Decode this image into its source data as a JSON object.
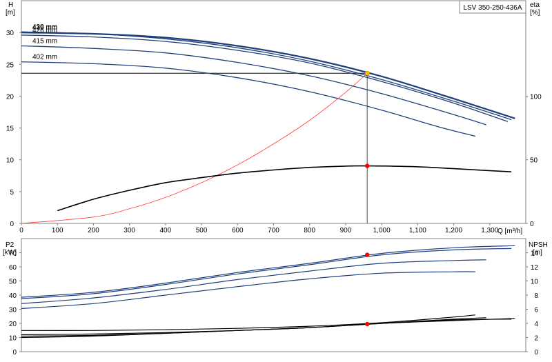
{
  "chart_data": [
    {
      "type": "line",
      "title": "LSV 350-250-436A",
      "xlabel": "Q [m³/h]",
      "ylabel_left": [
        "H",
        "[m]"
      ],
      "ylabel_right": [
        "eta",
        "[%]"
      ],
      "xlim": [
        0,
        1400
      ],
      "ylim": [
        0,
        35
      ],
      "ylim_right": [
        0,
        175
      ],
      "x_ticks": [
        0,
        100,
        200,
        300,
        400,
        500,
        600,
        700,
        800,
        900,
        1000,
        1100,
        1200,
        1300
      ],
      "x_tick_labels": [
        "0",
        "100",
        "200",
        "300",
        "400",
        "500",
        "600",
        "700",
        "800",
        "900",
        "1,000",
        "1,100",
        "1,200",
        "1,300"
      ],
      "y_ticks": [
        0,
        5,
        10,
        15,
        20,
        25,
        30
      ],
      "y_tick_labels": [
        "0",
        "5",
        "10",
        "15",
        "20",
        "25",
        "30"
      ],
      "y_right_ticks": [
        0,
        50,
        100
      ],
      "y_right_tick_labels": [
        "0",
        "50",
        "100"
      ],
      "grid": false,
      "colors": {
        "curve": "#1f3f7a",
        "curve_fine": "#3a5f9a",
        "system_curve": "#ff3b3b",
        "efficiency": "#000000",
        "point_red": "#ff0000",
        "point_yellow": "#ffc000",
        "guide": "#888888"
      },
      "series": [
        {
          "name": "430 mm",
          "role": "head",
          "x": [
            0,
            200,
            400,
            600,
            800,
            1000,
            1200,
            1360
          ],
          "y": [
            30.1,
            29.8,
            29.0,
            27.6,
            25.5,
            22.6,
            19.2,
            16.3
          ]
        },
        {
          "name": "436 mm",
          "role": "head",
          "x": [
            0,
            200,
            400,
            600,
            800,
            1000,
            1200,
            1370
          ],
          "y": [
            30.0,
            29.8,
            29.2,
            27.9,
            25.9,
            23.1,
            19.6,
            16.5
          ]
        },
        {
          "name": "426 mm",
          "role": "head",
          "x": [
            0,
            200,
            400,
            600,
            800,
            1000,
            1200,
            1350
          ],
          "y": [
            29.6,
            29.3,
            28.6,
            27.2,
            25.2,
            22.3,
            18.9,
            16.0
          ]
        },
        {
          "name": "415 mm",
          "role": "head",
          "x": [
            0,
            200,
            400,
            600,
            800,
            1000,
            1200,
            1290
          ],
          "y": [
            27.9,
            27.5,
            26.8,
            25.3,
            23.2,
            20.4,
            17.1,
            15.5
          ]
        },
        {
          "name": "402 mm",
          "role": "head",
          "x": [
            0,
            200,
            400,
            600,
            800,
            1000,
            1150,
            1260
          ],
          "y": [
            25.4,
            25.1,
            24.4,
            22.9,
            20.7,
            17.8,
            15.3,
            13.7
          ]
        },
        {
          "role": "system",
          "x": [
            0,
            200,
            300,
            400,
            500,
            600,
            700,
            800,
            900,
            960
          ],
          "y": [
            0,
            1.0,
            2.3,
            4.1,
            6.4,
            9.2,
            12.5,
            16.2,
            20.6,
            23.6
          ]
        },
        {
          "role": "efficiency",
          "x": [
            100,
            200,
            300,
            400,
            500,
            600,
            700,
            800,
            900,
            960,
            1100,
            1200,
            1360
          ],
          "y": [
            10,
            19,
            26,
            32,
            36,
            39.5,
            42,
            44,
            45,
            45.2,
            44.5,
            43,
            40.5
          ]
        }
      ],
      "operating_point": {
        "x": 960,
        "y": 23.6,
        "eta": 45.2
      }
    },
    {
      "type": "line",
      "ylabel_left": [
        "P2",
        "[kW]"
      ],
      "ylabel_right": [
        "NPSH",
        "[m]"
      ],
      "xlim": [
        0,
        1400
      ],
      "ylim": [
        0,
        80
      ],
      "ylim_right": [
        0,
        16
      ],
      "y_ticks": [
        0,
        10,
        20,
        30,
        40,
        50,
        60,
        70
      ],
      "y_tick_labels": [
        "0",
        "10",
        "20",
        "30",
        "40",
        "50",
        "60",
        "70"
      ],
      "y_right_ticks": [
        0,
        2,
        4,
        6,
        8,
        10,
        12,
        14
      ],
      "y_right_tick_labels": [
        "0",
        "2",
        "4",
        "6",
        "8",
        "10",
        "12",
        "14"
      ],
      "grid": false,
      "series": [
        {
          "role": "power",
          "x": [
            0,
            200,
            400,
            600,
            800,
            1000,
            1200,
            1370
          ],
          "y": [
            38.5,
            42,
            48.5,
            56,
            62.5,
            69.5,
            73.5,
            75
          ]
        },
        {
          "role": "power",
          "x": [
            0,
            200,
            400,
            600,
            800,
            1000,
            1200,
            1360
          ],
          "y": [
            37.5,
            41,
            47.5,
            55,
            61.5,
            68.5,
            72,
            73
          ]
        },
        {
          "role": "power",
          "x": [
            0,
            200,
            400,
            600,
            800,
            1000,
            1200,
            1290
          ],
          "y": [
            34,
            38,
            44,
            51,
            57,
            62.5,
            64.5,
            65
          ]
        },
        {
          "role": "power",
          "x": [
            0,
            200,
            400,
            600,
            800,
            1000,
            1200,
            1260
          ],
          "y": [
            30.5,
            34,
            40,
            46,
            51.5,
            55.5,
            56.5,
            56.5
          ]
        },
        {
          "role": "npsh",
          "x": [
            0,
            200,
            400,
            600,
            800,
            1000,
            1200,
            1370
          ],
          "y": [
            2.0,
            2.2,
            2.6,
            3.0,
            3.4,
            4.0,
            4.4,
            4.7
          ]
        },
        {
          "role": "npsh",
          "x": [
            0,
            200,
            400,
            600,
            800,
            1000,
            1200,
            1360
          ],
          "y": [
            2.2,
            2.3,
            2.6,
            3.0,
            3.4,
            4.0,
            4.5,
            4.6
          ]
        },
        {
          "role": "npsh",
          "x": [
            0,
            200,
            400,
            600,
            800,
            1000,
            1200,
            1290
          ],
          "y": [
            2.4,
            2.5,
            2.7,
            3.0,
            3.4,
            4.0,
            4.6,
            4.8
          ]
        },
        {
          "role": "npsh",
          "x": [
            0,
            200,
            400,
            600,
            800,
            1000,
            1200,
            1260
          ],
          "y": [
            3.0,
            3.0,
            3.1,
            3.3,
            3.6,
            4.1,
            4.9,
            5.2
          ]
        }
      ],
      "operating_point_power": {
        "x": 960,
        "y": 68.5
      },
      "operating_point_npsh": {
        "x": 960,
        "y": 3.9
      }
    }
  ]
}
